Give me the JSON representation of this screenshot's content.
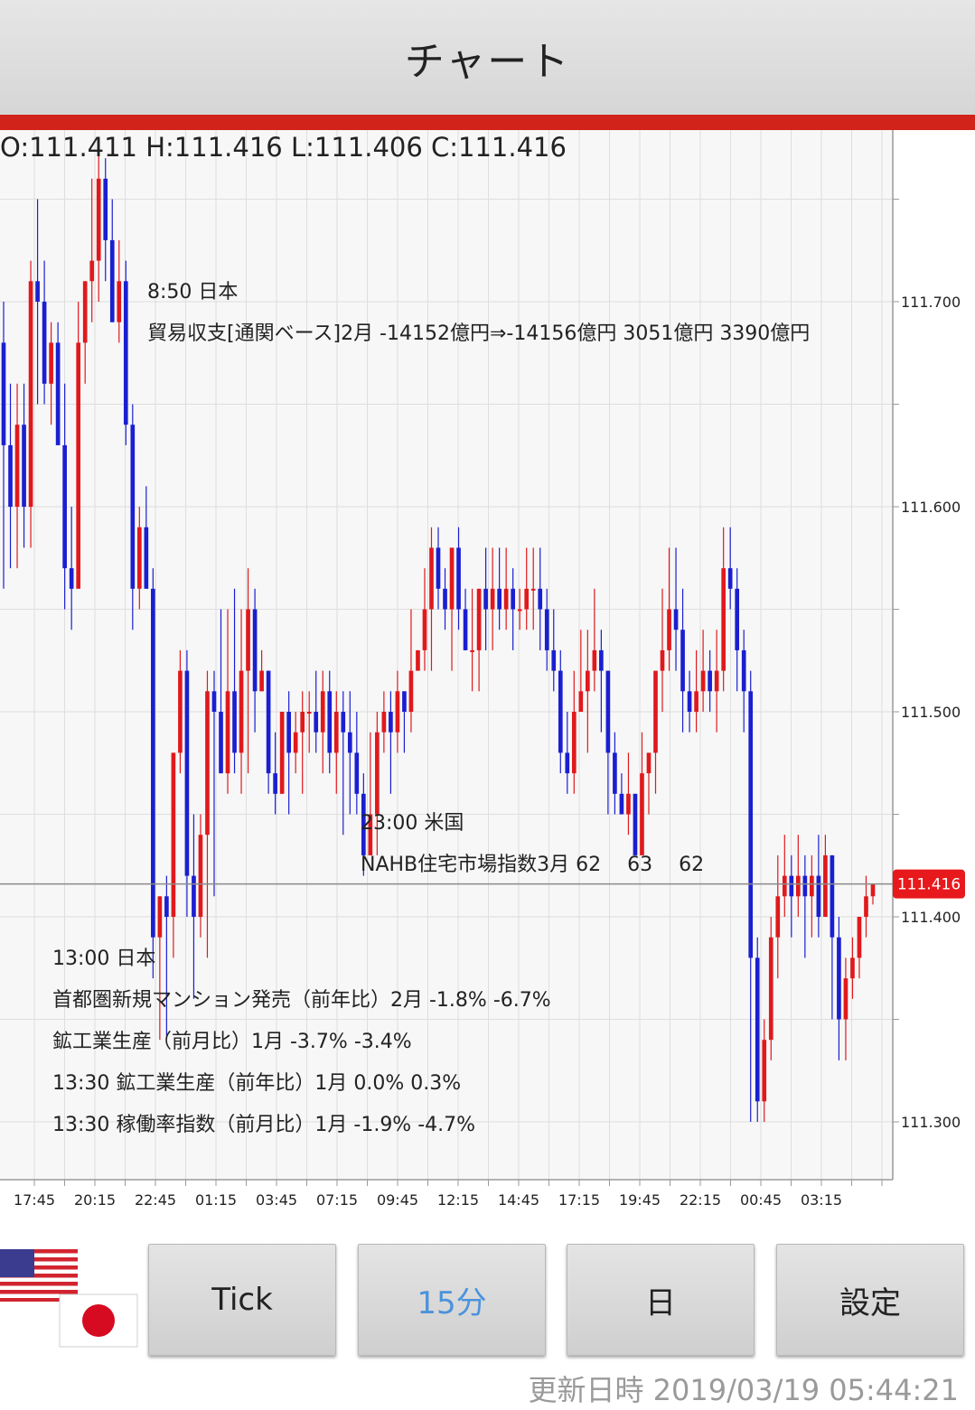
{
  "header": {
    "title": "チャート"
  },
  "ohlc_text": "O:111.411 H:111.416 L:111.406 C:111.416",
  "annotations": [
    {
      "lines": [
        "8:50 日本",
        "貿易収支[通関ベース]2月 -14152億円⇒-14156億円 3051億円 3390億円"
      ]
    },
    {
      "lines": [
        "23:00 米国",
        "NAHB住宅市場指数3月 62 　63 　62"
      ]
    },
    {
      "lines": [
        "13:00 日本",
        "首都圏新規マンション発売（前年比）2月 -1.8% -6.7%",
        "鉱工業生産（前月比）1月 -3.7% -3.4%",
        "13:30 鉱工業生産（前年比）1月 0.0% 0.3%",
        "13:30 稼働率指数（前月比）1月 -1.9% -4.7%"
      ]
    }
  ],
  "buttons": {
    "tick": "Tick",
    "m15": "15分",
    "day": "日",
    "settings": "設定"
  },
  "updated": "更新日時 2019/03/19 05:44:21",
  "flags": [
    "us-flag-icon",
    "jp-flag-icon"
  ],
  "colors": {
    "up": "#e0191c",
    "down": "#1a1fd0",
    "accent": "#d2231a",
    "price_tag": "#e8191c",
    "active_button_text": "#4b93dc"
  },
  "chart_data": {
    "type": "candlestick",
    "pair_interval": "15分",
    "ylim": [
      111.27,
      111.78
    ],
    "y_ticks": [
      "111.700",
      "111.600",
      "111.500",
      "111.400",
      "111.300"
    ],
    "x_ticks": [
      "17:45",
      "20:15",
      "22:45",
      "01:15",
      "03:45",
      "07:15",
      "09:45",
      "12:15",
      "14:45",
      "17:15",
      "19:45",
      "22:15",
      "00:45",
      "03:15"
    ],
    "current_price": "111.416",
    "grid": true,
    "candles": [
      [
        111.68,
        111.63,
        111.7,
        111.56
      ],
      [
        111.63,
        111.6,
        111.66,
        111.57
      ],
      [
        111.6,
        111.64,
        111.66,
        111.57
      ],
      [
        111.64,
        111.6,
        111.66,
        111.58
      ],
      [
        111.6,
        111.71,
        111.72,
        111.58
      ],
      [
        111.71,
        111.7,
        111.75,
        111.65
      ],
      [
        111.7,
        111.66,
        111.72,
        111.65
      ],
      [
        111.66,
        111.68,
        111.69,
        111.64
      ],
      [
        111.68,
        111.63,
        111.69,
        111.63
      ],
      [
        111.63,
        111.57,
        111.66,
        111.55
      ],
      [
        111.57,
        111.56,
        111.6,
        111.54
      ],
      [
        111.56,
        111.68,
        111.7,
        111.56
      ],
      [
        111.68,
        111.71,
        111.71,
        111.66
      ],
      [
        111.71,
        111.72,
        111.76,
        111.69
      ],
      [
        111.72,
        111.76,
        111.78,
        111.7
      ],
      [
        111.76,
        111.73,
        111.77,
        111.71
      ],
      [
        111.73,
        111.69,
        111.75,
        111.69
      ],
      [
        111.69,
        111.71,
        111.73,
        111.68
      ],
      [
        111.71,
        111.64,
        111.72,
        111.63
      ],
      [
        111.64,
        111.56,
        111.65,
        111.54
      ],
      [
        111.56,
        111.59,
        111.6,
        111.55
      ],
      [
        111.59,
        111.56,
        111.61,
        111.56
      ],
      [
        111.56,
        111.39,
        111.57,
        111.37
      ],
      [
        111.39,
        111.41,
        111.41,
        111.34
      ],
      [
        111.41,
        111.4,
        111.42,
        111.34
      ],
      [
        111.4,
        111.48,
        111.48,
        111.38
      ],
      [
        111.48,
        111.52,
        111.53,
        111.47
      ],
      [
        111.52,
        111.42,
        111.53,
        111.4
      ],
      [
        111.42,
        111.4,
        111.45,
        111.36
      ],
      [
        111.4,
        111.44,
        111.45,
        111.39
      ],
      [
        111.44,
        111.51,
        111.52,
        111.38
      ],
      [
        111.51,
        111.5,
        111.52,
        111.41
      ],
      [
        111.5,
        111.47,
        111.55,
        111.47
      ],
      [
        111.47,
        111.51,
        111.55,
        111.46
      ],
      [
        111.51,
        111.48,
        111.56,
        111.47
      ],
      [
        111.48,
        111.52,
        111.55,
        111.46
      ],
      [
        111.52,
        111.55,
        111.57,
        111.47
      ],
      [
        111.55,
        111.51,
        111.56,
        111.49
      ],
      [
        111.51,
        111.52,
        111.53,
        111.51
      ],
      [
        111.52,
        111.47,
        111.52,
        111.46
      ],
      [
        111.47,
        111.46,
        111.49,
        111.45
      ],
      [
        111.46,
        111.5,
        111.5,
        111.46
      ],
      [
        111.5,
        111.48,
        111.51,
        111.45
      ],
      [
        111.48,
        111.49,
        111.5,
        111.47
      ],
      [
        111.49,
        111.5,
        111.51,
        111.46
      ],
      [
        111.5,
        111.5,
        111.51,
        111.48
      ],
      [
        111.5,
        111.49,
        111.52,
        111.48
      ],
      [
        111.49,
        111.51,
        111.52,
        111.47
      ],
      [
        111.51,
        111.48,
        111.52,
        111.47
      ],
      [
        111.48,
        111.5,
        111.51,
        111.46
      ],
      [
        111.5,
        111.49,
        111.51,
        111.44
      ],
      [
        111.49,
        111.48,
        111.51,
        111.45
      ],
      [
        111.48,
        111.46,
        111.5,
        111.45
      ],
      [
        111.46,
        111.43,
        111.47,
        111.42
      ],
      [
        111.43,
        111.45,
        111.49,
        111.43
      ],
      [
        111.45,
        111.49,
        111.5,
        111.43
      ],
      [
        111.49,
        111.5,
        111.51,
        111.48
      ],
      [
        111.5,
        111.49,
        111.51,
        111.46
      ],
      [
        111.49,
        111.51,
        111.52,
        111.48
      ],
      [
        111.51,
        111.5,
        111.51,
        111.48
      ],
      [
        111.5,
        111.52,
        111.55,
        111.49
      ],
      [
        111.52,
        111.53,
        111.53,
        111.52
      ],
      [
        111.53,
        111.55,
        111.57,
        111.52
      ],
      [
        111.55,
        111.58,
        111.59,
        111.52
      ],
      [
        111.58,
        111.56,
        111.59,
        111.55
      ],
      [
        111.56,
        111.55,
        111.57,
        111.54
      ],
      [
        111.55,
        111.58,
        111.58,
        111.52
      ],
      [
        111.58,
        111.55,
        111.59,
        111.54
      ],
      [
        111.55,
        111.53,
        111.56,
        111.53
      ],
      [
        111.53,
        111.53,
        111.56,
        111.51
      ],
      [
        111.53,
        111.56,
        111.56,
        111.51
      ],
      [
        111.56,
        111.55,
        111.58,
        111.53
      ],
      [
        111.55,
        111.56,
        111.58,
        111.53
      ],
      [
        111.56,
        111.55,
        111.58,
        111.54
      ],
      [
        111.55,
        111.56,
        111.58,
        111.54
      ],
      [
        111.56,
        111.55,
        111.57,
        111.53
      ],
      [
        111.55,
        111.55,
        111.56,
        111.54
      ],
      [
        111.55,
        111.56,
        111.58,
        111.54
      ],
      [
        111.56,
        111.56,
        111.58,
        111.54
      ],
      [
        111.56,
        111.55,
        111.58,
        111.53
      ],
      [
        111.55,
        111.53,
        111.56,
        111.52
      ],
      [
        111.53,
        111.52,
        111.55,
        111.51
      ],
      [
        111.52,
        111.48,
        111.53,
        111.47
      ],
      [
        111.48,
        111.47,
        111.5,
        111.46
      ],
      [
        111.47,
        111.5,
        111.52,
        111.46
      ],
      [
        111.5,
        111.51,
        111.54,
        111.5
      ],
      [
        111.51,
        111.52,
        111.54,
        111.48
      ],
      [
        111.52,
        111.53,
        111.56,
        111.51
      ],
      [
        111.53,
        111.52,
        111.54,
        111.49
      ],
      [
        111.52,
        111.48,
        111.52,
        111.45
      ],
      [
        111.48,
        111.46,
        111.49,
        111.45
      ],
      [
        111.46,
        111.45,
        111.47,
        111.45
      ],
      [
        111.45,
        111.46,
        111.48,
        111.44
      ],
      [
        111.46,
        111.43,
        111.46,
        111.43
      ],
      [
        111.43,
        111.47,
        111.49,
        111.44
      ],
      [
        111.47,
        111.48,
        111.48,
        111.45
      ],
      [
        111.48,
        111.52,
        111.52,
        111.46
      ],
      [
        111.52,
        111.53,
        111.56,
        111.5
      ],
      [
        111.53,
        111.55,
        111.58,
        111.52
      ],
      [
        111.55,
        111.54,
        111.58,
        111.52
      ],
      [
        111.54,
        111.51,
        111.56,
        111.49
      ],
      [
        111.51,
        111.5,
        111.52,
        111.49
      ],
      [
        111.5,
        111.51,
        111.53,
        111.49
      ],
      [
        111.51,
        111.52,
        111.54,
        111.5
      ],
      [
        111.52,
        111.51,
        111.53,
        111.5
      ],
      [
        111.51,
        111.52,
        111.54,
        111.49
      ],
      [
        111.52,
        111.57,
        111.59,
        111.51
      ],
      [
        111.57,
        111.56,
        111.59,
        111.55
      ],
      [
        111.56,
        111.53,
        111.57,
        111.51
      ],
      [
        111.53,
        111.51,
        111.54,
        111.49
      ],
      [
        111.51,
        111.38,
        111.52,
        111.3
      ],
      [
        111.38,
        111.31,
        111.39,
        111.3
      ],
      [
        111.31,
        111.34,
        111.35,
        111.3
      ],
      [
        111.34,
        111.39,
        111.4,
        111.33
      ],
      [
        111.39,
        111.41,
        111.43,
        111.37
      ],
      [
        111.41,
        111.42,
        111.44,
        111.4
      ],
      [
        111.42,
        111.41,
        111.43,
        111.39
      ],
      [
        111.41,
        111.42,
        111.44,
        111.4
      ],
      [
        111.42,
        111.41,
        111.43,
        111.38
      ],
      [
        111.41,
        111.42,
        111.43,
        111.39
      ],
      [
        111.42,
        111.4,
        111.44,
        111.39
      ],
      [
        111.4,
        111.43,
        111.44,
        111.4
      ],
      [
        111.43,
        111.39,
        111.43,
        111.35
      ],
      [
        111.39,
        111.35,
        111.4,
        111.33
      ],
      [
        111.35,
        111.37,
        111.38,
        111.33
      ],
      [
        111.37,
        111.38,
        111.39,
        111.36
      ],
      [
        111.38,
        111.4,
        111.4,
        111.37
      ],
      [
        111.4,
        111.41,
        111.42,
        111.39
      ],
      [
        111.41,
        111.416,
        111.416,
        111.406
      ]
    ]
  }
}
